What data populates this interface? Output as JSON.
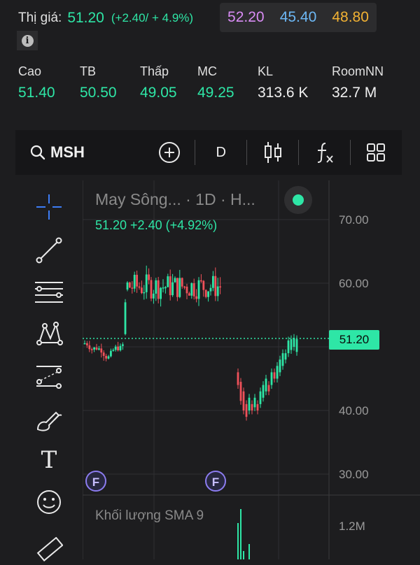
{
  "quote": {
    "label": "Thị giá:",
    "price": "51.20",
    "change": "(+2.40/ + 4.9%)",
    "ceiling": "52.20",
    "floor": "45.40",
    "reference": "48.80"
  },
  "stats": [
    {
      "label": "Cao",
      "value": "51.40",
      "color": "#2ee6a6"
    },
    {
      "label": "TB",
      "value": "50.50",
      "color": "#2ee6a6"
    },
    {
      "label": "Thấp",
      "value": "49.05",
      "color": "#2ee6a6"
    },
    {
      "label": "MC",
      "value": "49.25",
      "color": "#2ee6a6"
    },
    {
      "label": "KL",
      "value": "313.6 K",
      "color": "#f0f0f0"
    },
    {
      "label": "RoomNN",
      "value": "32.7 M",
      "color": "#f0f0f0"
    }
  ],
  "toolbar": {
    "symbol": "MSH",
    "interval": "D",
    "icons": [
      "search-icon",
      "add-indicator-icon",
      "candlestick-icon",
      "function-icon",
      "layout-grid-icon"
    ]
  },
  "sidebar": {
    "tools": [
      "crosshair-icon",
      "trend-line-icon",
      "horizontal-lines-icon",
      "pattern-icon",
      "prediction-icon",
      "brush-icon",
      "text-icon",
      "emoji-icon",
      "ruler-icon"
    ],
    "text_tool_label": "T"
  },
  "chart": {
    "legend_title": "May Sông... · 1D · H...",
    "legend_value": "51.20  +2.40 (+4.92%)",
    "current_price_label": "51.20",
    "volume_title": "Khối lượng SMA 9",
    "event_badge": "F",
    "colors": {
      "up": "#2ee6a6",
      "down": "#f0515a"
    }
  },
  "chart_data": {
    "type": "candlestick",
    "y_ticks": [
      "70.00",
      "60.00",
      "40.00",
      "30.00"
    ],
    "volume_ticks": [
      "1.2M"
    ],
    "last_price": 51.2,
    "ylim": [
      30,
      70
    ]
  }
}
